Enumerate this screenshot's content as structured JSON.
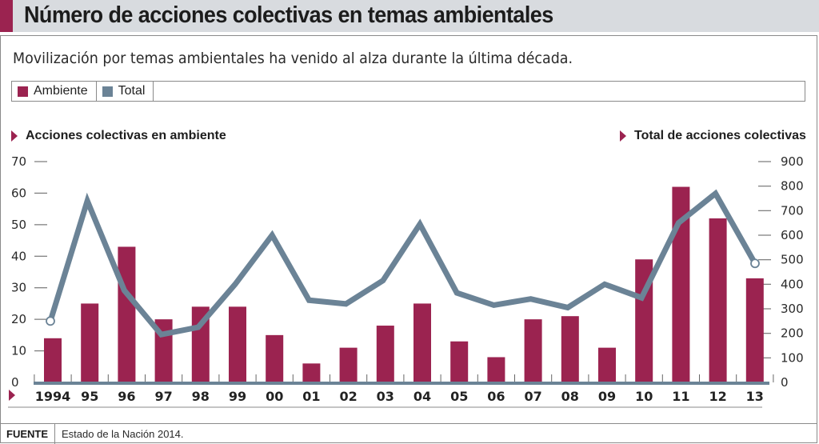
{
  "header": {
    "title": "Número de acciones colectivas en temas ambientales",
    "subtitle": "Movilización por temas ambientales ha venido al alza durante la última década.",
    "accent_color": "#9b2350"
  },
  "legend": [
    {
      "label": "Ambiente",
      "color": "#9b2350"
    },
    {
      "label": "Total",
      "color": "#6b8396"
    }
  ],
  "axes": {
    "left_title": "Acciones colectivas en ambiente",
    "right_title": "Total de acciones colectivas"
  },
  "source": {
    "label": "FUENTE",
    "text": "Estado de la Nación 2014."
  },
  "chart_data": {
    "type": "bar",
    "title": "Número de acciones colectivas en temas ambientales",
    "subtitle": "Movilización por temas ambientales ha venido al alza durante la última década.",
    "categories": [
      "1994",
      "95",
      "96",
      "97",
      "98",
      "99",
      "00",
      "01",
      "02",
      "03",
      "04",
      "05",
      "06",
      "07",
      "08",
      "09",
      "10",
      "11",
      "12",
      "13"
    ],
    "series": [
      {
        "name": "Ambiente",
        "type": "bar",
        "axis": "left",
        "color": "#9b2350",
        "values": [
          14,
          25,
          43,
          20,
          24,
          24,
          15,
          6,
          11,
          18,
          25,
          13,
          8,
          20,
          21,
          11,
          39,
          62,
          52,
          33
        ]
      },
      {
        "name": "Total",
        "type": "line",
        "axis": "right",
        "color": "#6b8396",
        "values": [
          250,
          740,
          375,
          195,
          225,
          400,
          600,
          335,
          320,
          415,
          645,
          365,
          315,
          340,
          305,
          400,
          345,
          650,
          770,
          485
        ]
      }
    ],
    "ylabel": "Acciones colectivas en ambiente",
    "ylim": [
      0,
      70
    ],
    "yticks": [
      0,
      10,
      20,
      30,
      40,
      50,
      60,
      70
    ],
    "y2label": "Total de acciones colectivas",
    "y2lim": [
      0,
      900
    ],
    "y2ticks": [
      0,
      100,
      200,
      300,
      400,
      500,
      600,
      700,
      800,
      900
    ],
    "grid": false,
    "legend_position": "top-left"
  }
}
